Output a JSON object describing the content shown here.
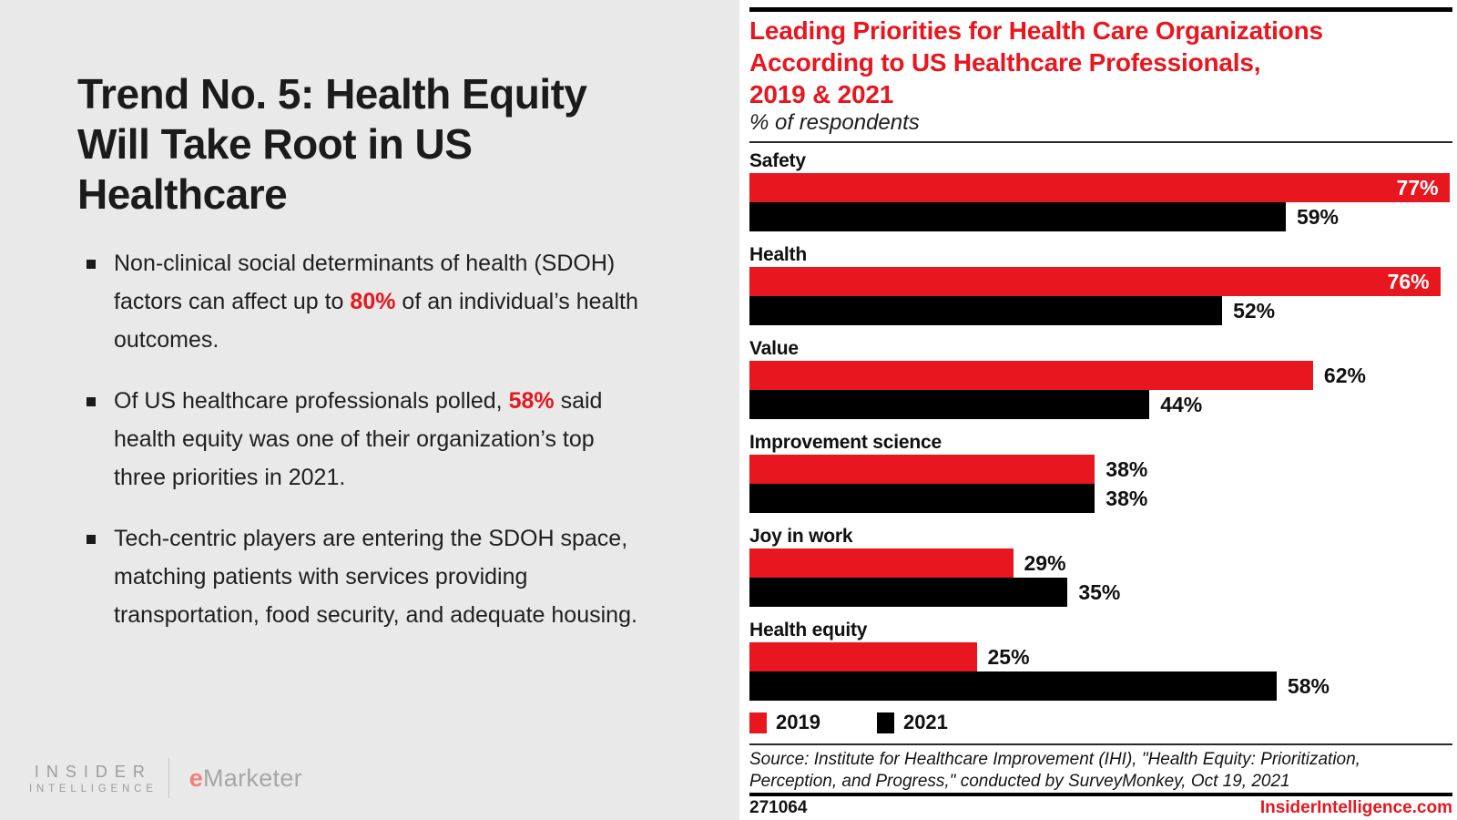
{
  "colors": {
    "accent_red": "#e8161e",
    "panel_gray": "#e9e9e9",
    "bar_black": "#000000"
  },
  "left_panel": {
    "title_lines": [
      "Trend No. 5: Health Equity",
      "Will Take Root in US",
      "Healthcare"
    ],
    "bullets": [
      {
        "pre": "Non-clinical social determinants of health (SDOH) factors can affect up to ",
        "highlight": "80%",
        "post": " of an individual’s health outcomes."
      },
      {
        "pre": "Of US healthcare professionals polled, ",
        "highlight": "58%",
        "post": " said health equity was one of their organization’s top three priorities in 2021."
      },
      {
        "pre": "Tech-centric players are entering the SDOH space, matching patients with services providing transportation, food security, and adequate housing.",
        "highlight": "",
        "post": ""
      }
    ],
    "logos": {
      "insider_line1": "INSIDER",
      "insider_line2": "INTELLIGENCE",
      "emarketer_e": "e",
      "emarketer_rest": "Marketer"
    }
  },
  "chart": {
    "title_lines": [
      "Leading Priorities for Health Care Organizations",
      "According to US Healthcare Professionals,",
      "2019 & 2021"
    ],
    "subtitle": "% of respondents",
    "source": "Source: Institute for Healthcare Improvement (IHI), \"Health Equity: Prioritization, Perception, and Progress,\" conducted by SurveyMonkey, Oct 19, 2021",
    "footer_id": "271064",
    "footer_site": "InsiderIntelligence.com"
  },
  "chart_data": {
    "type": "bar",
    "orientation": "horizontal",
    "title": "Leading Priorities for Health Care Organizations According to US Healthcare Professionals, 2019 & 2021",
    "subtitle": "% of respondents",
    "categories": [
      "Safety",
      "Health",
      "Value",
      "Improvement science",
      "Joy in work",
      "Health equity"
    ],
    "series": [
      {
        "name": "2019",
        "color": "#e8161e",
        "values": [
          77,
          76,
          62,
          38,
          29,
          25
        ]
      },
      {
        "name": "2021",
        "color": "#000000",
        "values": [
          59,
          52,
          44,
          38,
          35,
          58
        ]
      }
    ],
    "value_suffix": "%",
    "value_labels": true,
    "axis_max_implied": 77,
    "grid": false,
    "legend_position": "bottom",
    "source": "Source: Institute for Healthcare Improvement (IHI), \"Health Equity: Prioritization, Perception, and Progress,\" conducted by SurveyMonkey, Oct 19, 2021"
  }
}
